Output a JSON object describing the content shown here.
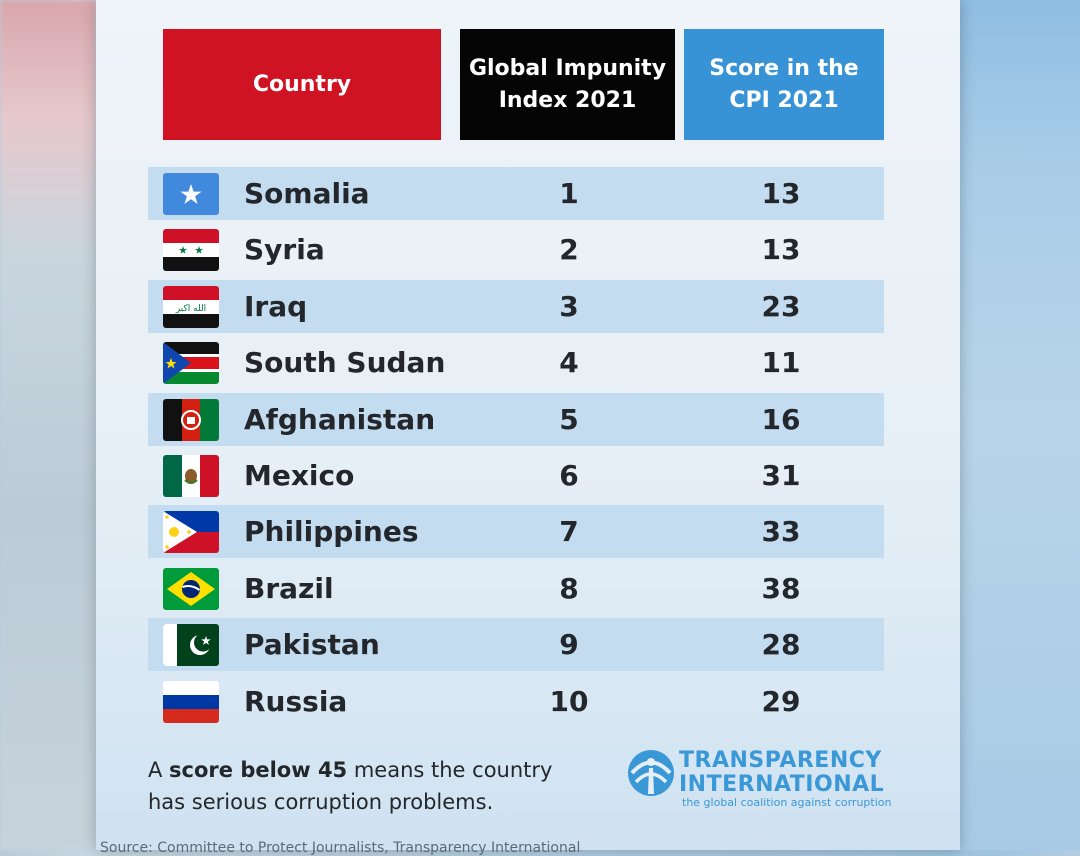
{
  "colors": {
    "country_header": "#cf1322",
    "gii_header": "#050505",
    "cpi_header": "#3793d6",
    "stripe": "#c4dcf0",
    "brand_blue": "#3a98d6"
  },
  "chart_data": {
    "type": "table",
    "headers": [
      "Country",
      "Global Impunity\nIndex 2021",
      "Score in the\nCPI 2021"
    ],
    "rows": [
      {
        "country": "Somalia",
        "gii": "1",
        "cpi": "13",
        "flag": "somalia-flag-icon"
      },
      {
        "country": "Syria",
        "gii": "2",
        "cpi": "13",
        "flag": "syria-flag-icon"
      },
      {
        "country": "Iraq",
        "gii": "3",
        "cpi": "23",
        "flag": "iraq-flag-icon"
      },
      {
        "country": "South Sudan",
        "gii": "4",
        "cpi": "11",
        "flag": "south-sudan-flag-icon"
      },
      {
        "country": "Afghanistan",
        "gii": "5",
        "cpi": "16",
        "flag": "afghanistan-flag-icon"
      },
      {
        "country": "Mexico",
        "gii": "6",
        "cpi": "31",
        "flag": "mexico-flag-icon"
      },
      {
        "country": "Philippines",
        "gii": "7",
        "cpi": "33",
        "flag": "philippines-flag-icon"
      },
      {
        "country": "Brazil",
        "gii": "8",
        "cpi": "38",
        "flag": "brazil-flag-icon"
      },
      {
        "country": "Pakistan",
        "gii": "9",
        "cpi": "28",
        "flag": "pakistan-flag-icon"
      },
      {
        "country": "Russia",
        "gii": "10",
        "cpi": "29",
        "flag": "russia-flag-icon"
      }
    ]
  },
  "note": {
    "prefix": "A ",
    "bold": "score below 45",
    "suffix": " means the country has serious corruption problems."
  },
  "logo": {
    "line1": "TRANSPARENCY",
    "line2": "INTERNATIONAL",
    "tagline": "the global coalition against corruption"
  },
  "source": "Source: Committee to Protect Journalists, Transparency International"
}
